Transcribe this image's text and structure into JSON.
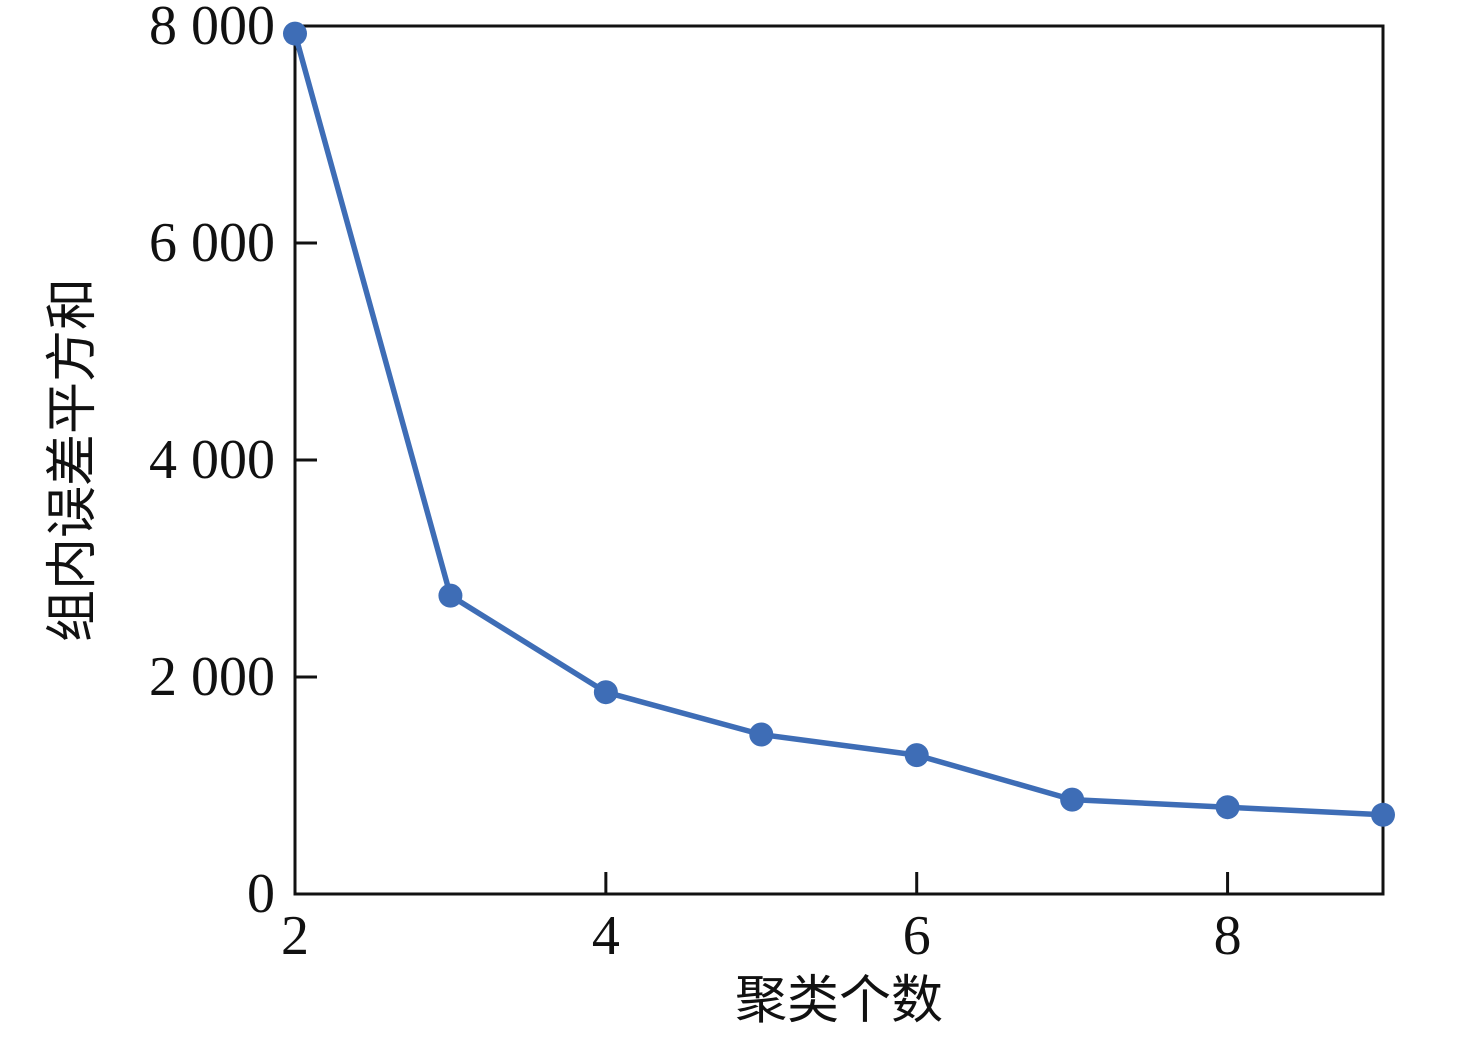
{
  "figure": {
    "background": "#ffffff"
  },
  "chart_data": {
    "type": "line",
    "title": "",
    "xlabel": "聚类个数",
    "ylabel": "组内误差平方和",
    "x": [
      2,
      3,
      4,
      5,
      6,
      7,
      8,
      9
    ],
    "series": [
      {
        "name": "组内误差平方和",
        "values": [
          7930,
          2750,
          1860,
          1470,
          1280,
          870,
          800,
          730
        ]
      }
    ],
    "xlim": [
      2,
      9
    ],
    "ylim": [
      0,
      8000
    ],
    "xticks": {
      "values": [
        2,
        4,
        6,
        8
      ],
      "labels": [
        "2",
        "4",
        "6",
        "8"
      ]
    },
    "yticks": {
      "values": [
        0,
        2000,
        4000,
        6000,
        8000
      ],
      "labels": [
        "0",
        "2 000",
        "4 000",
        "6 000",
        "8 000"
      ]
    },
    "grid": false,
    "legend_position": "none",
    "marker": "circle",
    "line_color": "#3E6DB6",
    "marker_color": "#3E6DB6",
    "axis_color": "#111111"
  }
}
